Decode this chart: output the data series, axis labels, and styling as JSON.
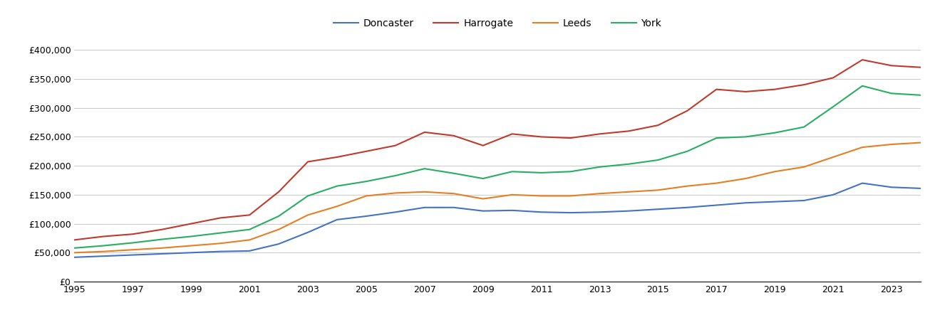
{
  "years": [
    1995,
    1996,
    1997,
    1998,
    1999,
    2000,
    2001,
    2002,
    2003,
    2004,
    2005,
    2006,
    2007,
    2008,
    2009,
    2010,
    2011,
    2012,
    2013,
    2014,
    2015,
    2016,
    2017,
    2018,
    2019,
    2020,
    2021,
    2022,
    2023,
    2024
  ],
  "Doncaster": [
    42000,
    44000,
    46000,
    48000,
    50000,
    52000,
    53000,
    65000,
    85000,
    107000,
    113000,
    120000,
    128000,
    128000,
    122000,
    123000,
    120000,
    119000,
    120000,
    122000,
    125000,
    128000,
    132000,
    136000,
    138000,
    140000,
    150000,
    170000,
    163000,
    161000
  ],
  "Harrogate": [
    72000,
    78000,
    82000,
    90000,
    100000,
    110000,
    115000,
    155000,
    207000,
    215000,
    225000,
    235000,
    258000,
    252000,
    235000,
    255000,
    250000,
    248000,
    255000,
    260000,
    270000,
    295000,
    332000,
    328000,
    332000,
    340000,
    352000,
    383000,
    373000,
    370000
  ],
  "Leeds": [
    50000,
    52000,
    55000,
    58000,
    62000,
    66000,
    72000,
    90000,
    115000,
    130000,
    148000,
    153000,
    155000,
    152000,
    143000,
    150000,
    148000,
    148000,
    152000,
    155000,
    158000,
    165000,
    170000,
    178000,
    190000,
    198000,
    215000,
    232000,
    237000,
    240000
  ],
  "York": [
    58000,
    62000,
    67000,
    73000,
    78000,
    84000,
    90000,
    113000,
    148000,
    165000,
    173000,
    183000,
    195000,
    187000,
    178000,
    190000,
    188000,
    190000,
    198000,
    203000,
    210000,
    225000,
    248000,
    250000,
    257000,
    267000,
    302000,
    338000,
    325000,
    322000
  ],
  "colors": {
    "Doncaster": "#4472c4",
    "Harrogate": "#c0392b",
    "Leeds": "#e67e22",
    "York": "#27ae60"
  },
  "ylim": [
    0,
    420000
  ],
  "yticks": [
    0,
    50000,
    100000,
    150000,
    200000,
    250000,
    300000,
    350000,
    400000
  ],
  "xlim_start": 1995,
  "xlim_end": 2024,
  "background_color": "#ffffff",
  "grid_color": "#cccccc",
  "legend_labels": [
    "Doncaster",
    "Harrogate",
    "Leeds",
    "York"
  ]
}
